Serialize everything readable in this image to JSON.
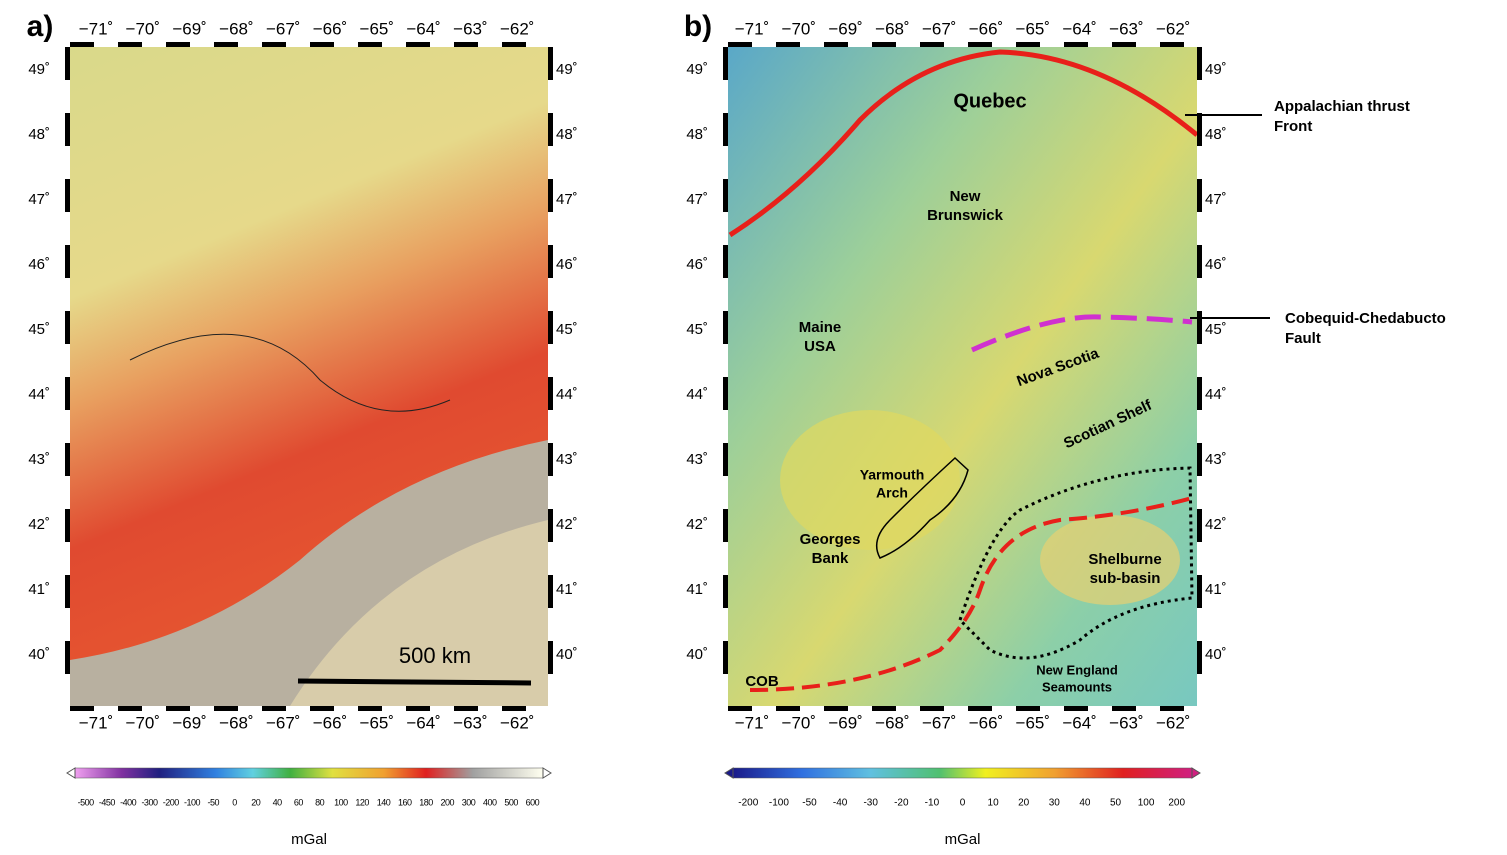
{
  "panels": [
    {
      "label": "a)",
      "lon_ticks": [
        "−71˚",
        "−70˚",
        "−69˚",
        "−68˚",
        "−67˚",
        "−66˚",
        "−65˚",
        "−64˚",
        "−63˚",
        "−62˚"
      ],
      "lat_ticks": [
        "49˚",
        "48˚",
        "47˚",
        "46˚",
        "45˚",
        "44˚",
        "43˚",
        "42˚",
        "41˚",
        "40˚"
      ],
      "scale_bar": "500 km",
      "colorbar": {
        "ticks": [
          "-500",
          "-450",
          "-400",
          "-300",
          "-200",
          "-100",
          "-50",
          "0",
          "20",
          "40",
          "60",
          "80",
          "100",
          "120",
          "140",
          "160",
          "180",
          "200",
          "300",
          "400",
          "500",
          "600"
        ],
        "unit": "mGal"
      }
    },
    {
      "label": "b)",
      "lon_ticks": [
        "−71˚",
        "−70˚",
        "−69˚",
        "−68˚",
        "−67˚",
        "−66˚",
        "−65˚",
        "−64˚",
        "−63˚",
        "−62˚"
      ],
      "lat_ticks": [
        "49˚",
        "48˚",
        "47˚",
        "46˚",
        "45˚",
        "44˚",
        "43˚",
        "42˚",
        "41˚",
        "40˚"
      ],
      "annotations": [
        {
          "lines": [
            "Quebec"
          ]
        },
        {
          "lines": [
            "New",
            "Brunswick"
          ]
        },
        {
          "lines": [
            "Maine",
            "USA"
          ]
        },
        {
          "lines": [
            "Nova Scotia"
          ]
        },
        {
          "lines": [
            "Scotian Shelf"
          ]
        },
        {
          "lines": [
            "Yarmouth",
            "Arch"
          ]
        },
        {
          "lines": [
            "Georges",
            "Bank"
          ]
        },
        {
          "lines": [
            "Shelburne",
            "sub-basin"
          ]
        },
        {
          "lines": [
            "New England",
            "Seamounts"
          ]
        },
        {
          "lines": [
            "COB"
          ]
        }
      ],
      "callouts": [
        {
          "lines": [
            "Appalachian thrust",
            "Front"
          ]
        },
        {
          "lines": [
            "Cobequid-Chedabucto",
            "Fault"
          ]
        }
      ],
      "colorbar": {
        "ticks": [
          "-200",
          "-100",
          "-50",
          "-40",
          "-30",
          "-20",
          "-10",
          "0",
          "10",
          "20",
          "30",
          "40",
          "50",
          "100",
          "200"
        ],
        "unit": "mGal"
      }
    }
  ]
}
